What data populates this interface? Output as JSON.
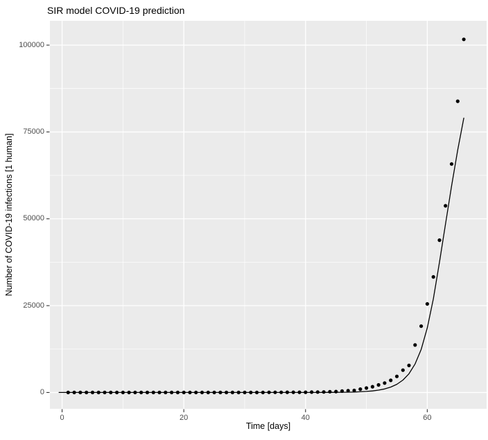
{
  "page": {
    "title": "SIR model COVID-19 prediction"
  },
  "chart_data": {
    "type": "scatter+line",
    "title": "SIR model COVID-19 prediction",
    "xlabel": "Time [days]",
    "ylabel": "Number of COVID-19 infections [1 human]",
    "legend": "none",
    "grid": {
      "major": true,
      "minor": true,
      "style": "white gridlines on grey panel (ggplot2 default)"
    },
    "x_axis": {
      "range": [
        -2.0,
        69.75
      ],
      "major_ticks": [
        0,
        20,
        40,
        60
      ],
      "tick_labels": [
        "0",
        "20",
        "40",
        "60"
      ],
      "minor_gridlines": [
        10,
        30,
        50
      ]
    },
    "y_axis": {
      "range": [
        -4700,
        107000
      ],
      "major_ticks": [
        0,
        25000,
        50000,
        75000,
        100000
      ],
      "tick_labels": [
        "0",
        "25000",
        "50000",
        "75000",
        "100000"
      ],
      "minor_gridlines": [
        12500,
        37500,
        62500,
        87500
      ]
    },
    "series": [
      {
        "name": "observed-infections-points",
        "type": "scatter",
        "marker": "filled-circle",
        "marker_radius": 2.6,
        "color": "#000000",
        "x": [
          1,
          2,
          3,
          4,
          5,
          6,
          7,
          8,
          9,
          10,
          11,
          12,
          13,
          14,
          15,
          16,
          17,
          18,
          19,
          20,
          21,
          22,
          23,
          24,
          25,
          26,
          27,
          28,
          29,
          30,
          31,
          32,
          33,
          34,
          35,
          36,
          37,
          38,
          39,
          40,
          41,
          42,
          43,
          44,
          45,
          46,
          47,
          48,
          49,
          50,
          51,
          52,
          53,
          54,
          55,
          56,
          57,
          58,
          59,
          60,
          61,
          62,
          63,
          64,
          65,
          66
        ],
        "y": [
          1,
          1,
          2,
          2,
          5,
          5,
          5,
          5,
          5,
          7,
          8,
          8,
          11,
          11,
          11,
          11,
          11,
          11,
          11,
          11,
          12,
          12,
          13,
          13,
          13,
          13,
          13,
          13,
          13,
          13,
          15,
          15,
          15,
          51,
          51,
          57,
          58,
          60,
          68,
          74,
          98,
          118,
          149,
          217,
          262,
          402,
          518,
          583,
          959,
          1281,
          1663,
          2179,
          2727,
          3499,
          4632,
          6421,
          7783,
          13677,
          19100,
          25489,
          33276,
          43847,
          53740,
          65778,
          83836,
          101657
        ]
      },
      {
        "name": "sir-model-fit-line",
        "type": "line",
        "color": "#000000",
        "stroke_width": 1.3,
        "x": [
          -0.5,
          10,
          20,
          30,
          35,
          40,
          41,
          42,
          43,
          44,
          45,
          46,
          47,
          48,
          49,
          50,
          51,
          52,
          53,
          54,
          55,
          56,
          57,
          58,
          59,
          60,
          61,
          62,
          63,
          64,
          65,
          66
        ],
        "y": [
          0,
          0,
          0,
          1,
          2,
          5,
          8,
          12,
          18,
          27,
          40,
          60,
          90,
          135,
          200,
          300,
          450,
          680,
          1030,
          1560,
          2360,
          3570,
          5400,
          8200,
          12400,
          18600,
          27000,
          37500,
          48500,
          59500,
          69800,
          79000
        ]
      }
    ]
  },
  "style": {
    "background": "#FFFFFF",
    "panel_bg": "#EBEBEB",
    "grid_color": "#FFFFFF",
    "point_color": "#000000",
    "line_color": "#000000",
    "tick_label_color": "#4D4D4D",
    "tick_mark_color": "#333333",
    "title_color": "#000000",
    "axis_title_color": "#000000"
  }
}
